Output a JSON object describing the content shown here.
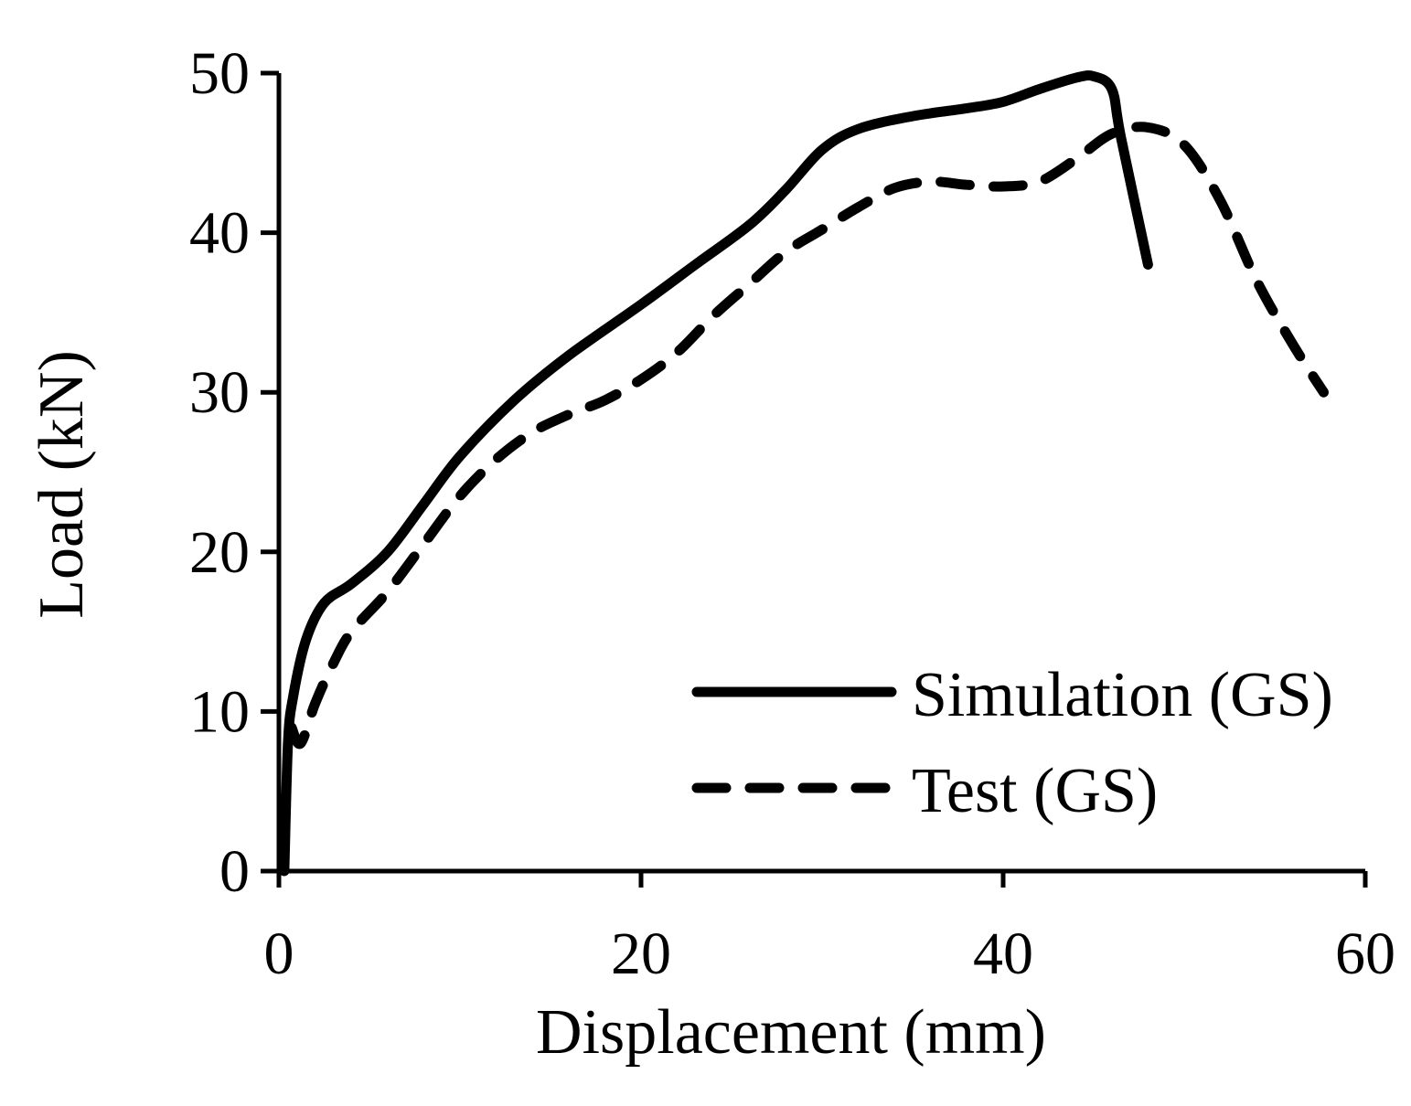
{
  "chart_data": {
    "type": "line",
    "title": "",
    "xlabel": "Displacement (mm)",
    "ylabel": "Load (kN)",
    "xlim": [
      0,
      60
    ],
    "ylim": [
      0,
      50
    ],
    "xticks": [
      0,
      20,
      40,
      60
    ],
    "yticks": [
      0,
      10,
      20,
      30,
      40,
      50
    ],
    "xtick_labels": [
      "0",
      "20",
      "40",
      "60"
    ],
    "ytick_labels": [
      "0",
      "10",
      "20",
      "30",
      "40",
      "50"
    ],
    "grid": false,
    "legend_position": "bottom-right",
    "series": [
      {
        "name": "Simulation (GS)",
        "style": "solid",
        "color": "#000000",
        "x": [
          0.3,
          0.5,
          0.8,
          1.5,
          2.5,
          4,
          6,
          8,
          10,
          13,
          16,
          20,
          23,
          26,
          28,
          30,
          32,
          35,
          38,
          40,
          42,
          44,
          45,
          46,
          46.5,
          48
        ],
        "y": [
          0,
          8,
          11,
          14.5,
          16.8,
          18,
          20,
          23,
          26,
          29.5,
          32.3,
          35.5,
          38,
          40.5,
          42.7,
          45.2,
          46.5,
          47.3,
          47.8,
          48.2,
          49,
          49.7,
          49.8,
          49,
          46,
          38
        ]
      },
      {
        "name": "Test (GS)",
        "style": "dashed",
        "color": "#000000",
        "x": [
          0.7,
          1.2,
          2,
          3,
          4,
          6,
          8,
          10,
          12,
          14,
          16,
          18,
          20,
          22,
          24,
          26,
          28,
          30,
          32,
          34,
          36,
          38,
          40,
          42,
          44,
          46,
          48,
          50,
          52,
          54,
          56,
          57.7
        ],
        "y": [
          9,
          8,
          10.5,
          13,
          15,
          17.5,
          20.5,
          23.5,
          25.8,
          27.5,
          28.6,
          29.5,
          30.8,
          32.5,
          34.8,
          36.8,
          38.8,
          40.2,
          41.6,
          42.8,
          43.2,
          43.0,
          42.9,
          43.2,
          44.6,
          46.2,
          46.6,
          45.5,
          42,
          37,
          33,
          30
        ]
      }
    ]
  }
}
